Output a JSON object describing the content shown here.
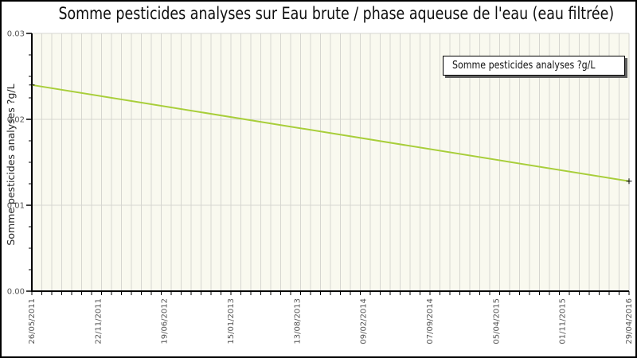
{
  "chart_data": {
    "type": "line",
    "title": "Somme pesticides analyses sur Eau brute / phase aqueuse de l'eau (eau filtrée)",
    "ylabel": "Somme pesticides analyses ?g/L",
    "xlabel": "",
    "ylim": [
      0,
      0.03
    ],
    "y_ticks": [
      {
        "value": 0,
        "label": "0.00"
      },
      {
        "value": 0.01,
        "label": "0.01"
      },
      {
        "value": 0.02,
        "label": "0.02"
      },
      {
        "value": 0.03,
        "label": "0.03"
      }
    ],
    "y_minor_tick_step": 0.0025,
    "x_tick_labels": [
      "26/05/2011",
      "22/11/2011",
      "19/06/2012",
      "15/01/2013",
      "13/08/2013",
      "09/02/2014",
      "07/09/2014",
      "05/04/2015",
      "01/11/2015",
      "29/04/2016"
    ],
    "x_minor_gridline_count": 61,
    "grid": {
      "vertical": true,
      "horizontal_major": true
    },
    "legend": {
      "position": "top-right",
      "entries": [
        {
          "label": "Somme pesticides analyses ?g/L",
          "marker": "plus",
          "color": "#a8ce3a"
        }
      ]
    },
    "series": [
      {
        "name": "Somme pesticides analyses ?g/L",
        "color": "#a8ce3a",
        "marker": "plus",
        "marker_color": "#000000",
        "points": [
          {
            "date": "26/05/2011",
            "value": 0.024
          },
          {
            "date": "29/04/2016",
            "value": 0.0128
          }
        ]
      }
    ],
    "colors": {
      "plot_background": "#f9f9ef",
      "gridline": "#d6d6d0",
      "axis": "#000000",
      "tick_label": "#555555",
      "title": "#0d0d0d"
    }
  }
}
